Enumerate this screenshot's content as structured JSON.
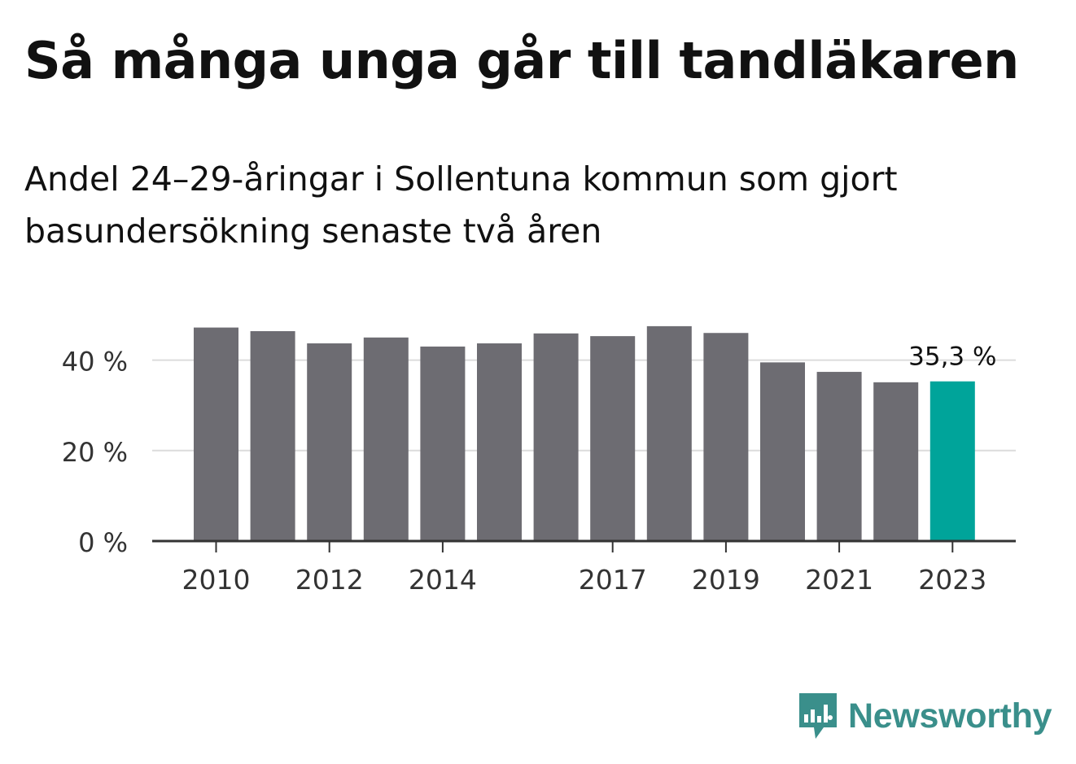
{
  "title": "Så många unga går till tandläkaren",
  "subtitle": "Andel 24–29-åringar i Sollentuna kommun som gjort basundersökning senaste två åren",
  "logo": {
    "text": "Newsworthy",
    "icon": "newsworthy-logo-icon"
  },
  "colors": {
    "bar": "#6d6c72",
    "highlight": "#00a49a",
    "grid": "#dcdcdc",
    "axis": "#333333",
    "logo": "#3a8f8b"
  },
  "chart_data": {
    "type": "bar",
    "title": "Så många unga går till tandläkaren",
    "subtitle": "Andel 24–29-åringar i Sollentuna kommun som gjort basundersökning senaste två åren",
    "categories": [
      "2010",
      "2011",
      "2012",
      "2013",
      "2014",
      "2015",
      "2016",
      "2017",
      "2018",
      "2019",
      "2020",
      "2021",
      "2022",
      "2023"
    ],
    "values": [
      47.2,
      46.4,
      43.7,
      45.0,
      43.0,
      43.7,
      45.9,
      45.3,
      47.5,
      46.0,
      39.5,
      37.4,
      35.1,
      35.3
    ],
    "highlight_index": 13,
    "highlight_label": "35,3 %",
    "xtick_labels": [
      "2010",
      "",
      "2012",
      "",
      "2014",
      "",
      "",
      "2017",
      "",
      "2019",
      "",
      "2021",
      "",
      "2023"
    ],
    "ytick_values": [
      0,
      20,
      40
    ],
    "ytick_labels": [
      "0 %",
      "20 %",
      "40 %"
    ],
    "ylim": [
      0,
      50
    ],
    "grid": true,
    "xlabel": "",
    "ylabel": ""
  }
}
